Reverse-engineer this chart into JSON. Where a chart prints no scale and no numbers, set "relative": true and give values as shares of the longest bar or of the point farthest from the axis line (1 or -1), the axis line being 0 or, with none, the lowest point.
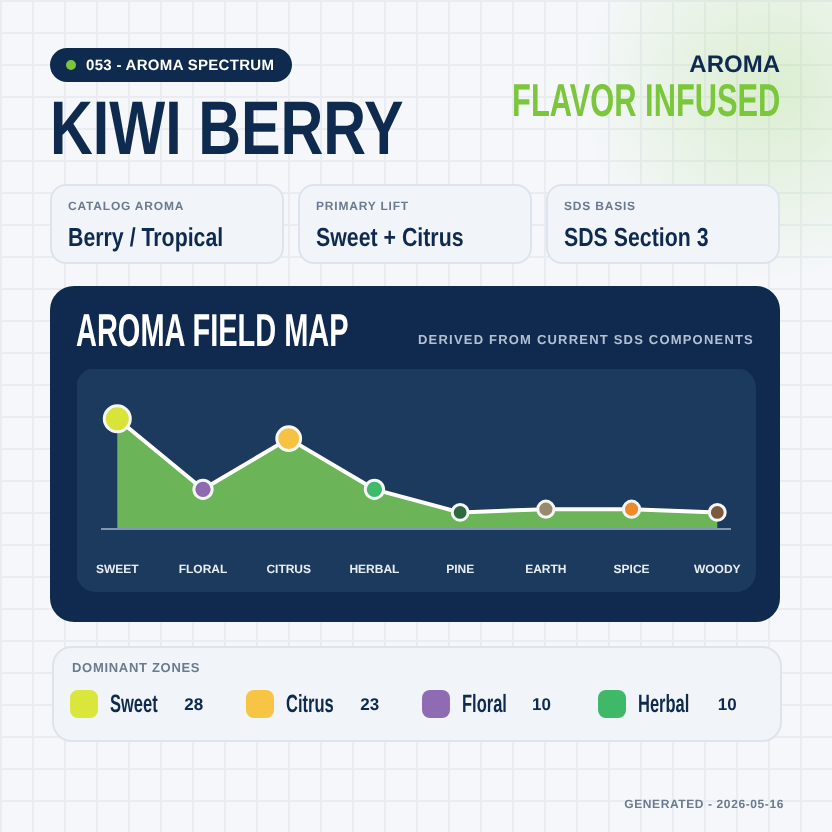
{
  "chart_data": [
    {
      "type": "other",
      "title": "KIWI BERRY",
      "subtitle": "053 - AROMA SPECTRUM",
      "annotations": [
        "AROMA",
        "FLAVOR INFUSED",
        "CATALOG AROMA",
        "Berry / Tropical",
        "PRIMARY LIFT",
        "Sweet + Citrus",
        "SDS BASIS",
        "SDS Section 3"
      ]
    },
    {
      "type": "area",
      "title": "AROMA FIELD MAP",
      "subtitle": "DERIVED FROM CURRENT SDS COMPONENTS",
      "categories": [
        "SWEET",
        "FLORAL",
        "CITRUS",
        "HERBAL",
        "PINE",
        "EARTH",
        "SPICE",
        "WOODY"
      ],
      "values": [
        1,
        0.36,
        0.82,
        0.36,
        0.15,
        0.18,
        0.18,
        0.15
      ],
      "relative": true,
      "color": "#74c256",
      "colors": [
        "#d8e43a",
        "#8e6bb0",
        "#f5c242",
        "#3dba6a",
        "#2d6a3e",
        "#9a8a6c",
        "#ef8a2c",
        "#7b5a3c"
      ],
      "marker": "circle"
    },
    {
      "type": "other",
      "title": "DOMINANT ZONES",
      "categories": [
        "Sweet",
        "Citrus",
        "Floral",
        "Herbal"
      ],
      "values": [
        28,
        23,
        10,
        10
      ],
      "colors": [
        "#d9e63b",
        "#f7c444",
        "#8f6bb3",
        "#3fb868"
      ],
      "data_labels": true,
      "annotations": [
        "GENERATED - 2026-05-16"
      ]
    }
  ]
}
